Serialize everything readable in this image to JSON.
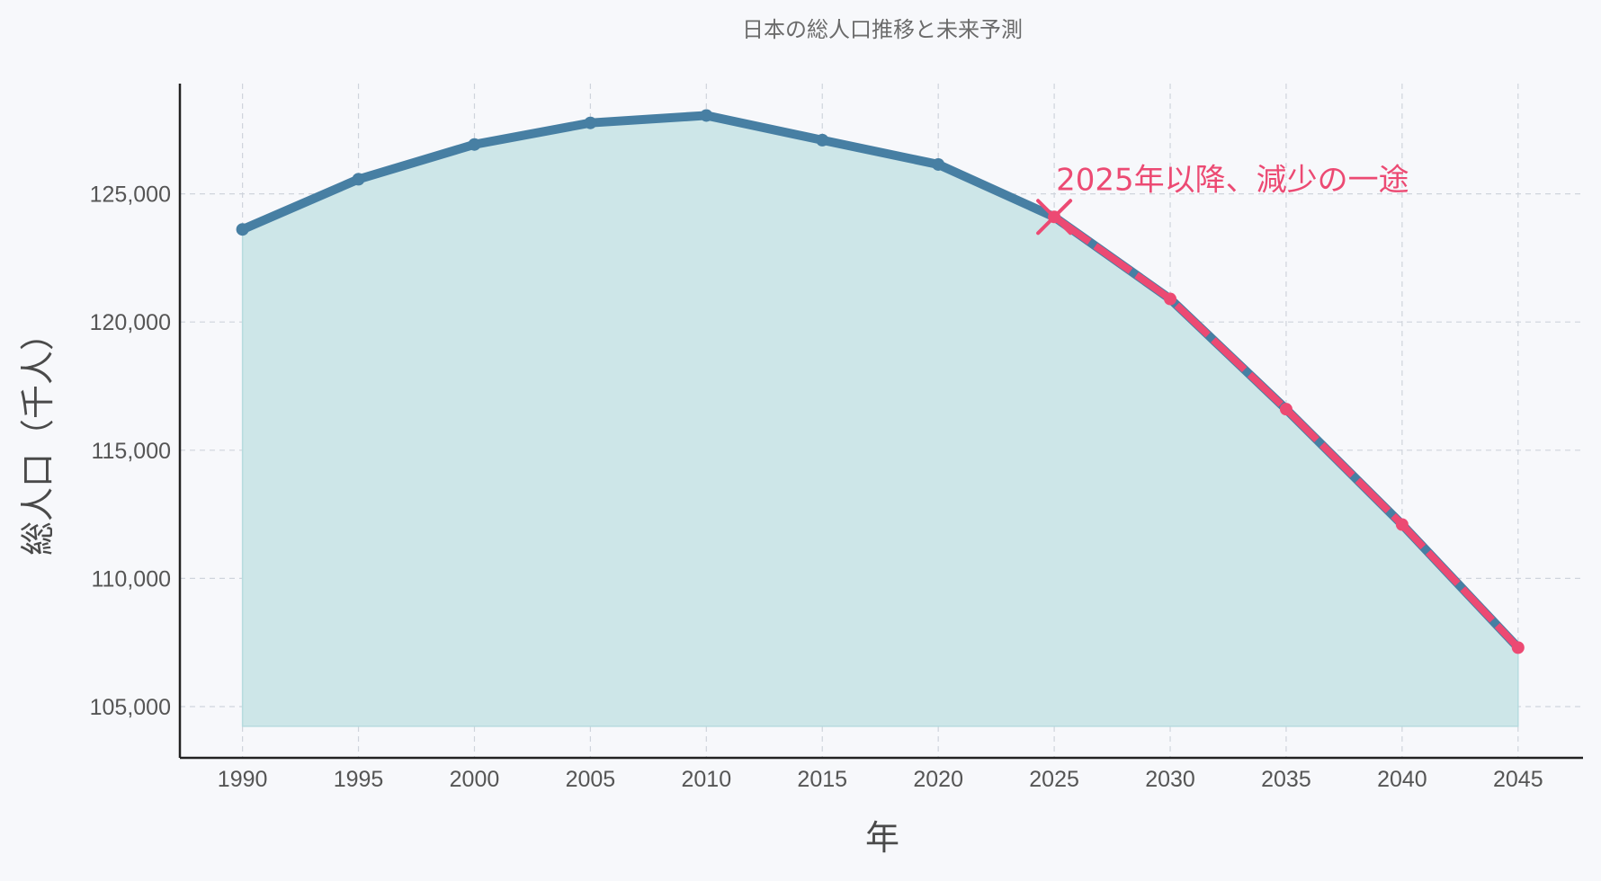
{
  "chart_data": {
    "type": "line",
    "title": "日本の総人口推移と未来予測",
    "xlabel": "年",
    "ylabel": "総人口（千人）",
    "x": [
      1990,
      1995,
      2000,
      2005,
      2010,
      2015,
      2020,
      2025,
      2030,
      2035,
      2040,
      2045
    ],
    "x_tick_labels": [
      "1990",
      "1995",
      "2000",
      "2005",
      "2010",
      "2015",
      "2020",
      "2025",
      "2030",
      "2035",
      "2040",
      "2045"
    ],
    "y_tick_values": [
      105000,
      110000,
      115000,
      120000,
      125000
    ],
    "y_tick_labels": [
      "105,000",
      "110,000",
      "115,000",
      "120,000",
      "125,000"
    ],
    "xlim": [
      1987.3,
      2047.8
    ],
    "ylim": [
      103000,
      129300
    ],
    "series": [
      {
        "values": [
          123611,
          125570,
          126926,
          127768,
          128057,
          127095,
          126146,
          124100,
          120900,
          116600,
          112100,
          107300
        ]
      }
    ],
    "highlight_from_x": 2025,
    "fill_baseline": 104230,
    "annotation": {
      "text": "2025年以降、減少の一途",
      "x": 2025,
      "y": 124100
    },
    "grid": true,
    "colors": {
      "line": "#477fa3",
      "highlight": "#ec4a73",
      "fill": "#cde6e8",
      "fill_edge": "#b7dbdf",
      "grid": "#cfd4dc",
      "axis": "#222222",
      "background": "#f7f8fb"
    }
  }
}
